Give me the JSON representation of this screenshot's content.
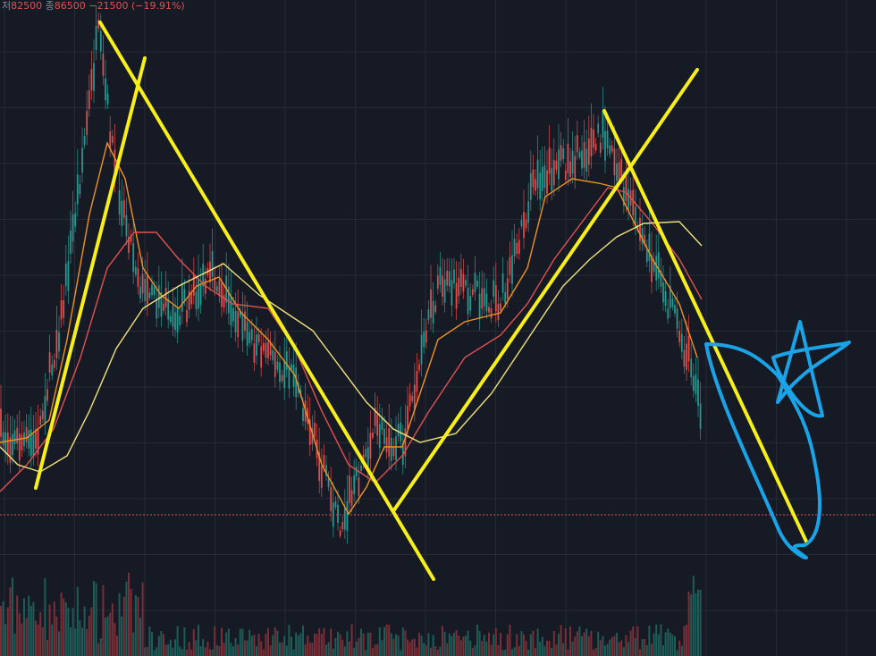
{
  "header": {
    "low_label": "저",
    "low": "82500",
    "close_label": "종",
    "close": "86500",
    "change": "−21500",
    "change_pct": "(−19.91%)"
  }
}
